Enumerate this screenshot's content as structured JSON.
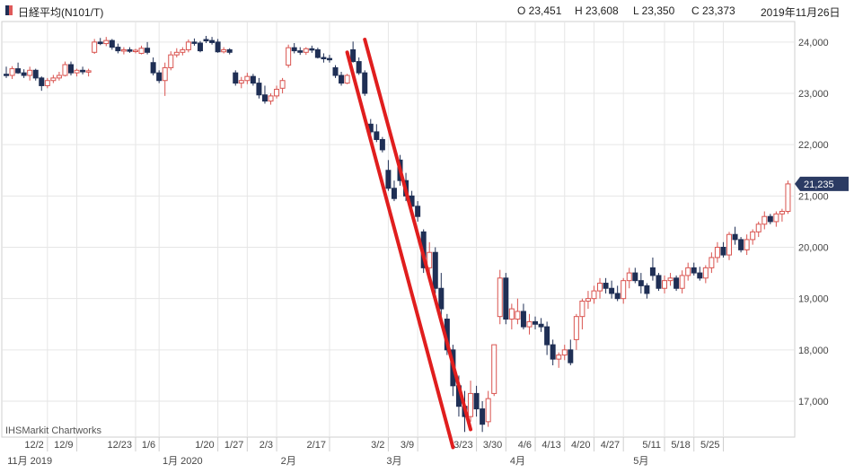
{
  "header": {
    "series_name": "日経平均(N101/T)",
    "open": "O 23,451",
    "high": "H 23,608",
    "low": "L 23,350",
    "close": "C 23,373",
    "date": "2019年11月26日"
  },
  "watermark": "IHSMarkit Chartworks",
  "colors": {
    "up": "#d9534f",
    "down": "#1f2f55",
    "trend": "#e01e1e",
    "grid": "#e6e6e6"
  },
  "chart_data": {
    "type": "candlestick",
    "title": "日経平均(N101/T)",
    "ylim": [
      16300,
      24400
    ],
    "y_ticks": [
      17000,
      18000,
      19000,
      20000,
      21000,
      22000,
      23000,
      24000
    ],
    "y_tick_labels": [
      "17,000",
      "18,000",
      "19,000",
      "20,000",
      "21,000",
      "22,000",
      "23,000",
      "24,000"
    ],
    "last_price_label": "21,235",
    "last_price": 21235,
    "x_tick_labels": [
      {
        "label": "12/2",
        "index": 7
      },
      {
        "label": "12/9",
        "index": 12
      },
      {
        "label": "12/23",
        "index": 22
      },
      {
        "label": "1/6",
        "index": 26
      },
      {
        "label": "1/20",
        "index": 36
      },
      {
        "label": "1/27",
        "index": 41
      },
      {
        "label": "2/3",
        "index": 46
      },
      {
        "label": "2/17",
        "index": 55
      },
      {
        "label": "3/2",
        "index": 65
      },
      {
        "label": "3/9",
        "index": 70
      },
      {
        "label": "3/23",
        "index": 80
      },
      {
        "label": "3/30",
        "index": 85
      },
      {
        "label": "4/6",
        "index": 90
      },
      {
        "label": "4/13",
        "index": 95
      },
      {
        "label": "4/20",
        "index": 100
      },
      {
        "label": "4/27",
        "index": 105
      },
      {
        "label": "5/11",
        "index": 112
      },
      {
        "label": "5/18",
        "index": 117
      },
      {
        "label": "5/25",
        "index": 122
      }
    ],
    "x_period_labels": [
      {
        "label": "11月 2019",
        "index": 4
      },
      {
        "label": "1月 2020",
        "index": 30
      },
      {
        "label": "2月",
        "index": 48
      },
      {
        "label": "3月",
        "index": 66
      },
      {
        "label": "4月",
        "index": 87
      },
      {
        "label": "5月",
        "index": 108
      }
    ],
    "candles": [
      [
        23373,
        23520,
        23300,
        23350
      ],
      [
        23350,
        23530,
        23280,
        23480
      ],
      [
        23480,
        23600,
        23380,
        23400
      ],
      [
        23400,
        23470,
        23300,
        23350
      ],
      [
        23350,
        23520,
        23250,
        23450
      ],
      [
        23450,
        23480,
        23250,
        23300
      ],
      [
        23300,
        23330,
        23050,
        23150
      ],
      [
        23150,
        23300,
        23100,
        23250
      ],
      [
        23250,
        23360,
        23200,
        23300
      ],
      [
        23300,
        23420,
        23250,
        23350
      ],
      [
        23350,
        23620,
        23330,
        23560
      ],
      [
        23560,
        23620,
        23350,
        23400
      ],
      [
        23400,
        23480,
        23330,
        23450
      ],
      [
        23450,
        23520,
        23370,
        23420
      ],
      [
        23420,
        23480,
        23330,
        23440
      ],
      [
        23800,
        24060,
        23770,
        24000
      ],
      [
        24000,
        24080,
        23940,
        23970
      ],
      [
        23970,
        24100,
        23920,
        24030
      ],
      [
        24030,
        24060,
        23850,
        23900
      ],
      [
        23900,
        23970,
        23780,
        23830
      ],
      [
        23830,
        23900,
        23760,
        23850
      ],
      [
        23850,
        23900,
        23790,
        23820
      ],
      [
        23820,
        23870,
        23780,
        23840
      ],
      [
        23780,
        23930,
        23760,
        23880
      ],
      [
        23880,
        24000,
        23760,
        23800
      ],
      [
        23600,
        23700,
        23350,
        23400
      ],
      [
        23400,
        23450,
        23200,
        23250
      ],
      [
        23250,
        23600,
        22950,
        23500
      ],
      [
        23500,
        23820,
        23450,
        23750
      ],
      [
        23750,
        23880,
        23700,
        23800
      ],
      [
        23800,
        23900,
        23740,
        23850
      ],
      [
        23850,
        24050,
        23800,
        24000
      ],
      [
        24000,
        24070,
        23930,
        23980
      ],
      [
        23980,
        24020,
        23800,
        23830
      ],
      [
        24050,
        24120,
        23980,
        24040
      ],
      [
        24030,
        24100,
        23950,
        23990
      ],
      [
        24000,
        24060,
        23790,
        23810
      ],
      [
        23810,
        23900,
        23780,
        23850
      ],
      [
        23850,
        23880,
        23760,
        23800
      ],
      [
        23400,
        23450,
        23150,
        23200
      ],
      [
        23200,
        23320,
        23100,
        23250
      ],
      [
        23250,
        23400,
        23180,
        23330
      ],
      [
        23330,
        23380,
        23150,
        23200
      ],
      [
        23200,
        23300,
        22900,
        22970
      ],
      [
        22970,
        23150,
        22800,
        22850
      ],
      [
        22850,
        23000,
        22780,
        22950
      ],
      [
        22950,
        23150,
        22900,
        23080
      ],
      [
        23100,
        23300,
        23000,
        23250
      ],
      [
        23550,
        23950,
        23500,
        23890
      ],
      [
        23890,
        23980,
        23780,
        23830
      ],
      [
        23830,
        23900,
        23750,
        23800
      ],
      [
        23800,
        23900,
        23750,
        23870
      ],
      [
        23870,
        23930,
        23790,
        23850
      ],
      [
        23850,
        23890,
        23680,
        23700
      ],
      [
        23700,
        23780,
        23600,
        23680
      ],
      [
        23680,
        23750,
        23600,
        23660
      ],
      [
        23500,
        23550,
        23300,
        23350
      ],
      [
        23350,
        23420,
        23150,
        23200
      ],
      [
        23200,
        23380,
        23180,
        23350
      ],
      [
        23850,
        24010,
        23600,
        23620
      ],
      [
        23620,
        23700,
        23360,
        23400
      ],
      [
        23400,
        23450,
        22950,
        23000
      ],
      [
        22400,
        22500,
        22200,
        22250
      ],
      [
        22250,
        22400,
        22050,
        22100
      ],
      [
        22100,
        22150,
        21850,
        21900
      ],
      [
        21500,
        21700,
        21100,
        21150
      ],
      [
        21150,
        21300,
        20900,
        20950
      ],
      [
        21700,
        21800,
        21200,
        21300
      ],
      [
        21300,
        21450,
        20900,
        21000
      ],
      [
        21000,
        21100,
        20750,
        20800
      ],
      [
        20800,
        20900,
        20500,
        20600
      ],
      [
        20300,
        20350,
        19500,
        19600
      ],
      [
        19600,
        20100,
        19400,
        19900
      ],
      [
        19900,
        20000,
        19100,
        19200
      ],
      [
        19200,
        19500,
        18600,
        18800
      ],
      [
        18600,
        18700,
        17900,
        18000
      ],
      [
        18000,
        18100,
        17100,
        17300
      ],
      [
        17300,
        17500,
        16700,
        16900
      ],
      [
        16900,
        17200,
        16400,
        16700
      ],
      [
        16700,
        17400,
        16600,
        17150
      ],
      [
        17150,
        17300,
        16700,
        16850
      ],
      [
        16850,
        17000,
        16400,
        16550
      ],
      [
        16600,
        17200,
        16500,
        17050
      ],
      [
        17150,
        18100,
        17100,
        18100
      ],
      [
        18650,
        19560,
        18500,
        19400
      ],
      [
        19400,
        19500,
        18500,
        18600
      ],
      [
        18600,
        18900,
        18400,
        18800
      ],
      [
        18600,
        19000,
        18500,
        18750
      ],
      [
        18750,
        18900,
        18400,
        18450
      ],
      [
        18450,
        18700,
        18300,
        18550
      ],
      [
        18550,
        18650,
        18400,
        18500
      ],
      [
        18500,
        18620,
        18350,
        18450
      ],
      [
        18450,
        18550,
        17900,
        18100
      ],
      [
        18100,
        18200,
        17700,
        17820
      ],
      [
        17820,
        17950,
        17650,
        17900
      ],
      [
        17900,
        18100,
        17800,
        18000
      ],
      [
        18000,
        18200,
        17700,
        17750
      ],
      [
        18200,
        18700,
        18000,
        18650
      ],
      [
        18650,
        19000,
        18400,
        18950
      ],
      [
        18950,
        19150,
        18800,
        19000
      ],
      [
        19000,
        19250,
        18900,
        19150
      ],
      [
        19150,
        19400,
        19000,
        19300
      ],
      [
        19300,
        19400,
        19100,
        19200
      ],
      [
        19200,
        19350,
        19000,
        19100
      ],
      [
        19100,
        19250,
        18950,
        19000
      ],
      [
        19000,
        19400,
        18900,
        19350
      ],
      [
        19350,
        19600,
        19200,
        19500
      ],
      [
        19500,
        19600,
        19300,
        19350
      ],
      [
        19350,
        19500,
        19100,
        19250
      ],
      [
        19250,
        19300,
        19000,
        19100
      ],
      [
        19600,
        19800,
        19350,
        19450
      ],
      [
        19450,
        19500,
        19150,
        19200
      ],
      [
        19200,
        19450,
        19100,
        19350
      ],
      [
        19350,
        19500,
        19250,
        19400
      ],
      [
        19400,
        19450,
        19150,
        19200
      ],
      [
        19200,
        19550,
        19100,
        19450
      ],
      [
        19450,
        19700,
        19350,
        19600
      ],
      [
        19600,
        19700,
        19450,
        19500
      ],
      [
        19500,
        19620,
        19350,
        19400
      ],
      [
        19400,
        19650,
        19300,
        19600
      ],
      [
        19600,
        19900,
        19500,
        19800
      ],
      [
        19800,
        20100,
        19700,
        20000
      ],
      [
        20000,
        20100,
        19800,
        19850
      ],
      [
        19850,
        20300,
        19750,
        20250
      ],
      [
        20250,
        20400,
        20050,
        20150
      ],
      [
        20150,
        20200,
        19900,
        19950
      ],
      [
        19950,
        20250,
        19850,
        20150
      ],
      [
        20150,
        20350,
        20050,
        20300
      ],
      [
        20300,
        20500,
        20200,
        20450
      ],
      [
        20450,
        20700,
        20350,
        20600
      ],
      [
        20600,
        20650,
        20450,
        20500
      ],
      [
        20500,
        20700,
        20400,
        20650
      ],
      [
        20650,
        20750,
        20500,
        20700
      ],
      [
        20700,
        21300,
        20650,
        21235
      ]
    ],
    "trend_lines": [
      {
        "x1": 58,
        "y1": 23800,
        "x2": 76,
        "y2": 16100
      },
      {
        "x1": 61,
        "y1": 24050,
        "x2": 79,
        "y2": 16450
      }
    ]
  }
}
